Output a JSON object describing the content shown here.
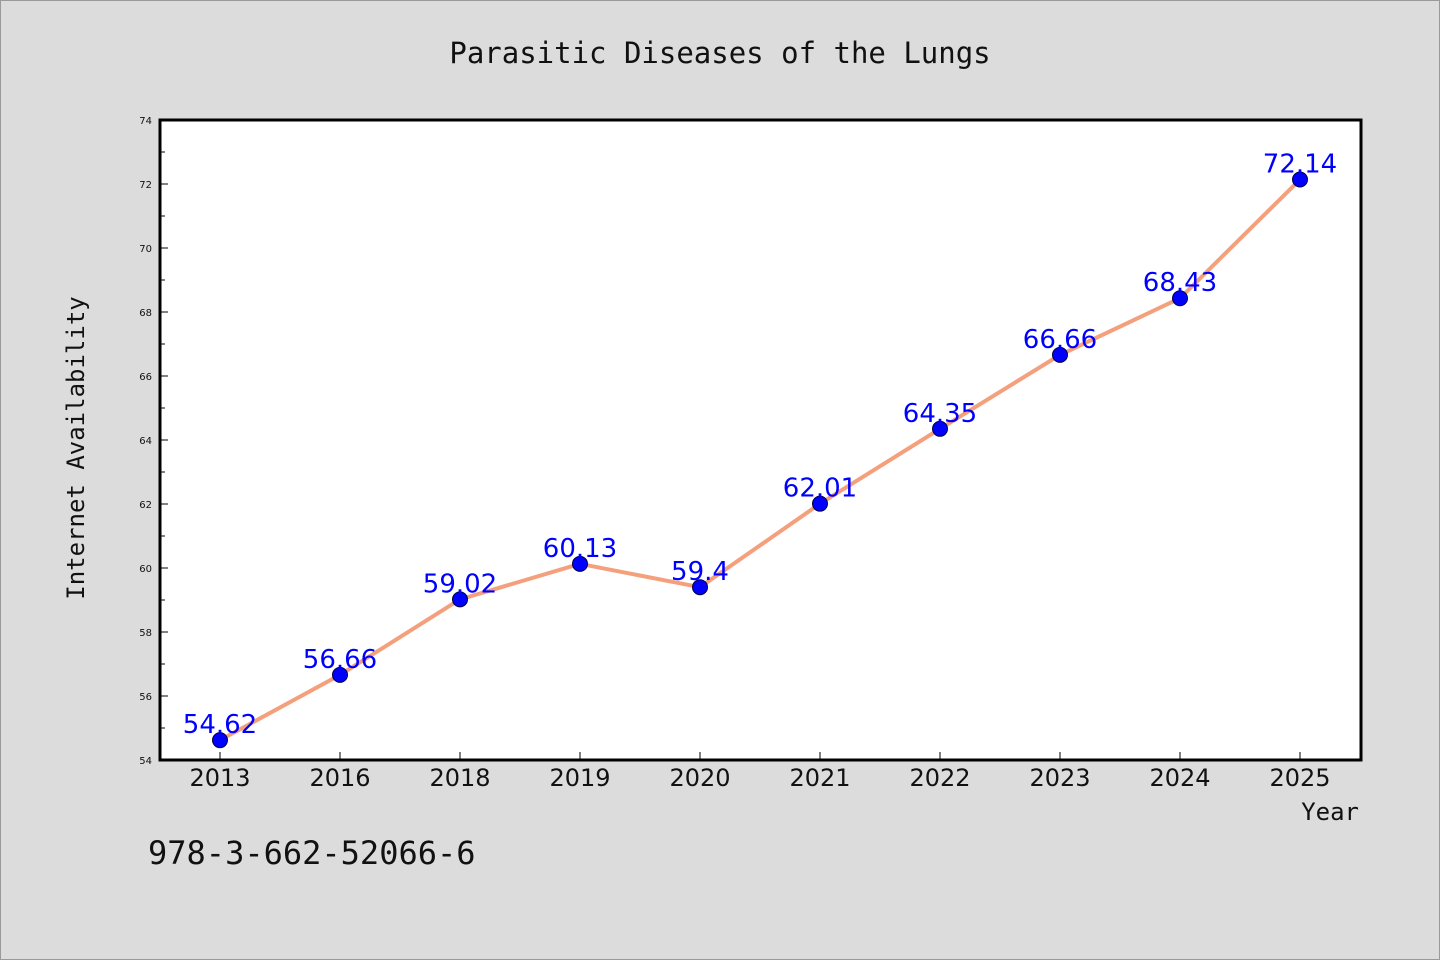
{
  "chart_data": {
    "type": "line",
    "title": "Parasitic Diseases of the Lungs",
    "xlabel": "Year",
    "ylabel": "Internet Availability",
    "categories": [
      "2013",
      "2016",
      "2018",
      "2019",
      "2020",
      "2021",
      "2022",
      "2023",
      "2024",
      "2025"
    ],
    "series": [
      {
        "values": [
          54.62,
          56.66,
          59.02,
          60.13,
          59.4,
          62.01,
          64.35,
          66.66,
          68.43,
          72.14
        ],
        "labels": [
          "54.62",
          "56.66",
          "59.02",
          "60.13",
          "59.4",
          "62.01",
          "64.35",
          "66.66",
          "68.43",
          "72.14"
        ],
        "line_color": "#f4a07c",
        "marker_color": "#0000ff"
      }
    ],
    "ylim": [
      54,
      74
    ],
    "yticks": [
      "54",
      "56",
      "58",
      "60",
      "62",
      "64",
      "66",
      "68",
      "70",
      "72",
      "74"
    ],
    "grid": false,
    "legend": "none"
  },
  "footer": {
    "isbn": "978-3-662-52066-6"
  },
  "colors": {
    "background": "#dcdcdc",
    "plot_background": "#ffffff",
    "line": "#f4a07c",
    "marker": "#0000ff",
    "data_label": "#0000ff"
  }
}
